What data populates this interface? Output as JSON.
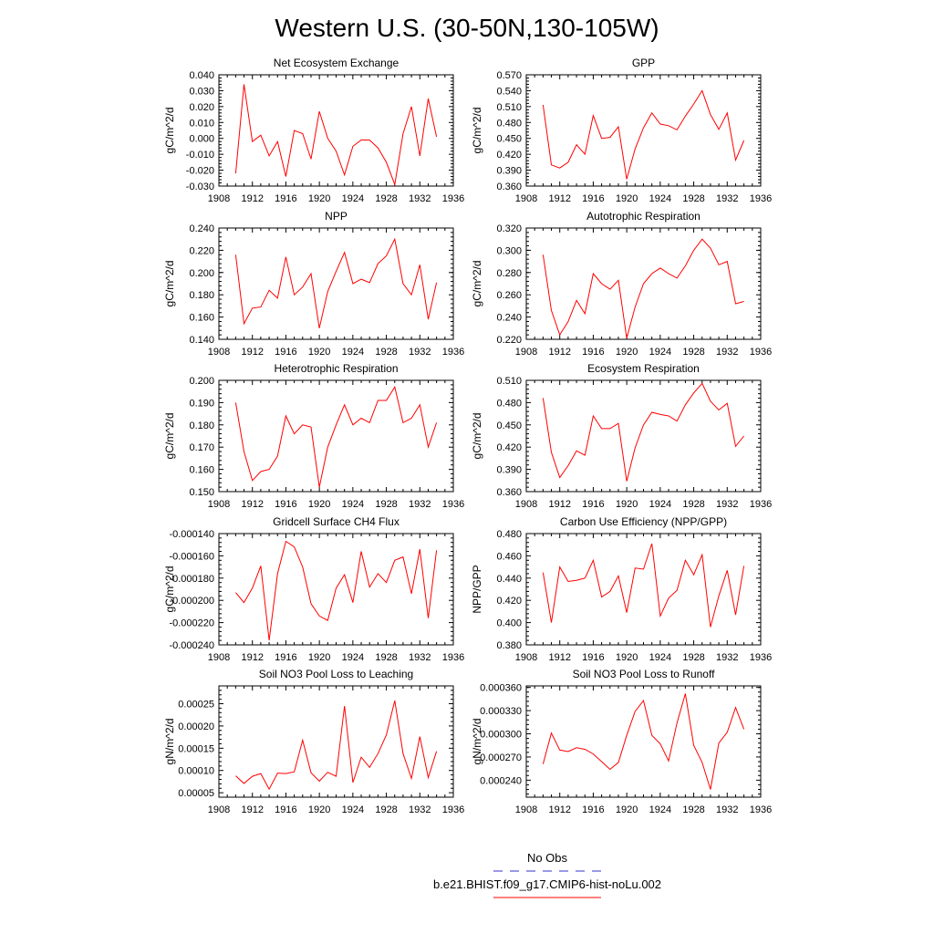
{
  "figure": {
    "title": "Western U.S. (30-50N,130-105W)",
    "legend": {
      "entries": [
        {
          "label": "No Obs",
          "color": "#3333cc",
          "dashed": true
        },
        {
          "label": "b.e21.BHIST.f09_g17.CMIP6-hist-noLu.002",
          "color": "#ff0000",
          "dashed": false
        }
      ]
    }
  },
  "chart_data": [
    {
      "type": "line",
      "title": "Net Ecosystem Exchange",
      "ylabel": "gC/m^2/d",
      "xlim": [
        1908,
        1936
      ],
      "xticks": [
        "1908",
        "1912",
        "1916",
        "1920",
        "1924",
        "1928",
        "1932",
        "1936"
      ],
      "ylim": [
        -0.03,
        0.04
      ],
      "yticks": [
        "-0.030",
        "-0.020",
        "-0.010",
        "0.000",
        "0.010",
        "0.020",
        "0.030",
        "0.040"
      ],
      "x": [
        1910,
        1911,
        1912,
        1913,
        1914,
        1915,
        1916,
        1917,
        1918,
        1919,
        1920,
        1921,
        1922,
        1923,
        1924,
        1925,
        1926,
        1927,
        1928,
        1929,
        1930,
        1931,
        1932,
        1933,
        1934
      ],
      "series": [
        {
          "color": "#ff0000",
          "values": [
            -0.022,
            0.034,
            -0.002,
            0.002,
            -0.011,
            -0.002,
            -0.024,
            0.005,
            0.003,
            -0.013,
            0.017,
            0.0,
            -0.008,
            -0.023,
            -0.005,
            -0.001,
            -0.001,
            -0.006,
            -0.015,
            -0.029,
            0.003,
            0.02,
            -0.011,
            0.025,
            0.001
          ]
        }
      ]
    },
    {
      "type": "line",
      "title": "GPP",
      "ylabel": "gC/m^2/d",
      "xlim": [
        1908,
        1936
      ],
      "xticks": [
        "1908",
        "1912",
        "1916",
        "1920",
        "1924",
        "1928",
        "1932",
        "1936"
      ],
      "ylim": [
        0.36,
        0.57
      ],
      "yticks": [
        "0.360",
        "0.390",
        "0.420",
        "0.450",
        "0.480",
        "0.510",
        "0.540",
        "0.570"
      ],
      "x": [
        1910,
        1911,
        1912,
        1913,
        1914,
        1915,
        1916,
        1917,
        1918,
        1919,
        1920,
        1921,
        1922,
        1923,
        1924,
        1925,
        1926,
        1927,
        1928,
        1929,
        1930,
        1931,
        1932,
        1933,
        1934
      ],
      "series": [
        {
          "color": "#ff0000",
          "values": [
            0.513,
            0.4,
            0.394,
            0.405,
            0.438,
            0.42,
            0.493,
            0.45,
            0.452,
            0.472,
            0.373,
            0.43,
            0.47,
            0.498,
            0.477,
            0.474,
            0.466,
            0.492,
            0.515,
            0.54,
            0.495,
            0.467,
            0.498,
            0.409,
            0.446
          ]
        }
      ]
    },
    {
      "type": "line",
      "title": "NPP",
      "ylabel": "gC/m^2/d",
      "xlim": [
        1908,
        1936
      ],
      "xticks": [
        "1908",
        "1912",
        "1916",
        "1920",
        "1924",
        "1928",
        "1932",
        "1936"
      ],
      "ylim": [
        0.14,
        0.24
      ],
      "yticks": [
        "0.140",
        "0.160",
        "0.180",
        "0.200",
        "0.220",
        "0.240"
      ],
      "x": [
        1910,
        1911,
        1912,
        1913,
        1914,
        1915,
        1916,
        1917,
        1918,
        1919,
        1920,
        1921,
        1922,
        1923,
        1924,
        1925,
        1926,
        1927,
        1928,
        1929,
        1930,
        1931,
        1932,
        1933,
        1934
      ],
      "series": [
        {
          "color": "#ff0000",
          "values": [
            0.216,
            0.154,
            0.168,
            0.169,
            0.184,
            0.177,
            0.214,
            0.18,
            0.187,
            0.199,
            0.15,
            0.183,
            0.201,
            0.218,
            0.19,
            0.194,
            0.191,
            0.208,
            0.215,
            0.23,
            0.19,
            0.18,
            0.207,
            0.158,
            0.191
          ]
        }
      ]
    },
    {
      "type": "line",
      "title": "Autotrophic Respiration",
      "ylabel": "gC/m^2/d",
      "xlim": [
        1908,
        1936
      ],
      "xticks": [
        "1908",
        "1912",
        "1916",
        "1920",
        "1924",
        "1928",
        "1932",
        "1936"
      ],
      "ylim": [
        0.22,
        0.32
      ],
      "yticks": [
        "0.220",
        "0.240",
        "0.260",
        "0.280",
        "0.300",
        "0.320"
      ],
      "x": [
        1910,
        1911,
        1912,
        1913,
        1914,
        1915,
        1916,
        1917,
        1918,
        1919,
        1920,
        1921,
        1922,
        1923,
        1924,
        1925,
        1926,
        1927,
        1928,
        1929,
        1930,
        1931,
        1932,
        1933,
        1934
      ],
      "series": [
        {
          "color": "#ff0000",
          "values": [
            0.296,
            0.246,
            0.224,
            0.236,
            0.255,
            0.243,
            0.279,
            0.27,
            0.265,
            0.273,
            0.221,
            0.249,
            0.27,
            0.279,
            0.284,
            0.279,
            0.275,
            0.286,
            0.3,
            0.31,
            0.302,
            0.287,
            0.29,
            0.252,
            0.254
          ]
        }
      ]
    },
    {
      "type": "line",
      "title": "Heterotrophic Respiration",
      "ylabel": "gC/m^2/d",
      "xlim": [
        1908,
        1936
      ],
      "xticks": [
        "1908",
        "1912",
        "1916",
        "1920",
        "1924",
        "1928",
        "1932",
        "1936"
      ],
      "ylim": [
        0.15,
        0.2
      ],
      "yticks": [
        "0.150",
        "0.160",
        "0.170",
        "0.180",
        "0.190",
        "0.200"
      ],
      "x": [
        1910,
        1911,
        1912,
        1913,
        1914,
        1915,
        1916,
        1917,
        1918,
        1919,
        1920,
        1921,
        1922,
        1923,
        1924,
        1925,
        1926,
        1927,
        1928,
        1929,
        1930,
        1931,
        1932,
        1933,
        1934
      ],
      "series": [
        {
          "color": "#ff0000",
          "values": [
            0.19,
            0.168,
            0.155,
            0.159,
            0.16,
            0.166,
            0.184,
            0.176,
            0.18,
            0.179,
            0.152,
            0.17,
            0.18,
            0.189,
            0.18,
            0.183,
            0.181,
            0.191,
            0.191,
            0.197,
            0.181,
            0.183,
            0.189,
            0.17,
            0.181
          ]
        }
      ]
    },
    {
      "type": "line",
      "title": "Ecosystem Respiration",
      "ylabel": "gC/m^2/d",
      "xlim": [
        1908,
        1936
      ],
      "xticks": [
        "1908",
        "1912",
        "1916",
        "1920",
        "1924",
        "1928",
        "1932",
        "1936"
      ],
      "ylim": [
        0.36,
        0.51
      ],
      "yticks": [
        "0.360",
        "0.390",
        "0.420",
        "0.450",
        "0.480",
        "0.510"
      ],
      "x": [
        1910,
        1911,
        1912,
        1913,
        1914,
        1915,
        1916,
        1917,
        1918,
        1919,
        1920,
        1921,
        1922,
        1923,
        1924,
        1925,
        1926,
        1927,
        1928,
        1929,
        1930,
        1931,
        1932,
        1933,
        1934
      ],
      "series": [
        {
          "color": "#ff0000",
          "values": [
            0.486,
            0.413,
            0.379,
            0.395,
            0.415,
            0.409,
            0.462,
            0.445,
            0.445,
            0.452,
            0.374,
            0.419,
            0.45,
            0.467,
            0.464,
            0.462,
            0.455,
            0.477,
            0.493,
            0.506,
            0.482,
            0.47,
            0.479,
            0.421,
            0.435
          ]
        }
      ]
    },
    {
      "type": "line",
      "title": "Gridcell Surface CH4 Flux",
      "ylabel": "gC/m^2/d",
      "xlim": [
        1908,
        1936
      ],
      "xticks": [
        "1908",
        "1912",
        "1916",
        "1920",
        "1924",
        "1928",
        "1932",
        "1936"
      ],
      "ylim": [
        -0.00024,
        -0.00014
      ],
      "yticks": [
        "-0.000240",
        "-0.000220",
        "-0.000200",
        "-0.000180",
        "-0.000160",
        "-0.000140"
      ],
      "x": [
        1910,
        1911,
        1912,
        1913,
        1914,
        1915,
        1916,
        1917,
        1918,
        1919,
        1920,
        1921,
        1922,
        1923,
        1924,
        1925,
        1926,
        1927,
        1928,
        1929,
        1930,
        1931,
        1932,
        1933,
        1934
      ],
      "series": [
        {
          "color": "#ff0000",
          "values": [
            -0.000193,
            -0.000202,
            -0.000189,
            -0.000169,
            -0.000236,
            -0.000176,
            -0.000147,
            -0.000152,
            -0.00017,
            -0.000203,
            -0.000214,
            -0.000218,
            -0.000189,
            -0.000177,
            -0.000202,
            -0.000156,
            -0.000188,
            -0.000176,
            -0.000184,
            -0.000164,
            -0.000161,
            -0.000194,
            -0.000154,
            -0.000216,
            -0.000155
          ]
        }
      ]
    },
    {
      "type": "line",
      "title": "Carbon Use Efficiency (NPP/GPP)",
      "ylabel": "NPP/GPP",
      "xlim": [
        1908,
        1936
      ],
      "xticks": [
        "1908",
        "1912",
        "1916",
        "1920",
        "1924",
        "1928",
        "1932",
        "1936"
      ],
      "ylim": [
        0.38,
        0.48
      ],
      "yticks": [
        "0.380",
        "0.400",
        "0.420",
        "0.440",
        "0.460",
        "0.480"
      ],
      "x": [
        1910,
        1911,
        1912,
        1913,
        1914,
        1915,
        1916,
        1917,
        1918,
        1919,
        1920,
        1921,
        1922,
        1923,
        1924,
        1925,
        1926,
        1927,
        1928,
        1929,
        1930,
        1931,
        1932,
        1933,
        1934
      ],
      "series": [
        {
          "color": "#ff0000",
          "values": [
            0.445,
            0.4,
            0.45,
            0.437,
            0.438,
            0.44,
            0.456,
            0.423,
            0.428,
            0.442,
            0.409,
            0.449,
            0.448,
            0.471,
            0.406,
            0.422,
            0.429,
            0.456,
            0.443,
            0.461,
            0.396,
            0.424,
            0.447,
            0.407,
            0.451
          ]
        }
      ]
    },
    {
      "type": "line",
      "title": "Soil NO3 Pool Loss to Leaching",
      "ylabel": "gN/m^2/d",
      "xlim": [
        1908,
        1936
      ],
      "xticks": [
        "1908",
        "1912",
        "1916",
        "1920",
        "1924",
        "1928",
        "1932",
        "1936"
      ],
      "ylim": [
        4e-05,
        0.00029
      ],
      "yticks": [
        "0.00005",
        "0.00010",
        "0.00015",
        "0.00020",
        "0.00025"
      ],
      "x": [
        1910,
        1911,
        1912,
        1913,
        1914,
        1915,
        1916,
        1917,
        1918,
        1919,
        1920,
        1921,
        1922,
        1923,
        1924,
        1925,
        1926,
        1927,
        1928,
        1929,
        1930,
        1931,
        1932,
        1933,
        1934
      ],
      "series": [
        {
          "color": "#ff0000",
          "values": [
            8.8e-05,
            7.1e-05,
            8.7e-05,
            9.3e-05,
            5.8e-05,
            9.4e-05,
            9.3e-05,
            9.7e-05,
            0.000168,
            9.5e-05,
            7.6e-05,
            9.6e-05,
            8.7e-05,
            0.000245,
            7.3e-05,
            0.00013,
            0.000107,
            0.000138,
            0.00018,
            0.000257,
            0.000138,
            8.2e-05,
            0.000176,
            8.4e-05,
            0.000143
          ]
        }
      ]
    },
    {
      "type": "line",
      "title": "Soil NO3 Pool Loss to Runoff",
      "ylabel": "gN/m^2/d",
      "xlim": [
        1908,
        1936
      ],
      "xticks": [
        "1908",
        "1912",
        "1916",
        "1920",
        "1924",
        "1928",
        "1932",
        "1936"
      ],
      "ylim": [
        0.000218,
        0.000362
      ],
      "yticks": [
        "0.000240",
        "0.000270",
        "0.000300",
        "0.000330",
        "0.000360"
      ],
      "x": [
        1910,
        1911,
        1912,
        1913,
        1914,
        1915,
        1916,
        1917,
        1918,
        1919,
        1920,
        1921,
        1922,
        1923,
        1924,
        1925,
        1926,
        1927,
        1928,
        1929,
        1930,
        1931,
        1932,
        1933,
        1934
      ],
      "series": [
        {
          "color": "#ff0000",
          "values": [
            0.000261,
            0.000301,
            0.000279,
            0.000277,
            0.000282,
            0.00028,
            0.000274,
            0.000264,
            0.000254,
            0.000263,
            0.000298,
            0.000329,
            0.000343,
            0.000298,
            0.000287,
            0.000265,
            0.000314,
            0.000352,
            0.000285,
            0.000263,
            0.000228,
            0.000288,
            0.000302,
            0.000334,
            0.000306
          ]
        }
      ]
    }
  ]
}
